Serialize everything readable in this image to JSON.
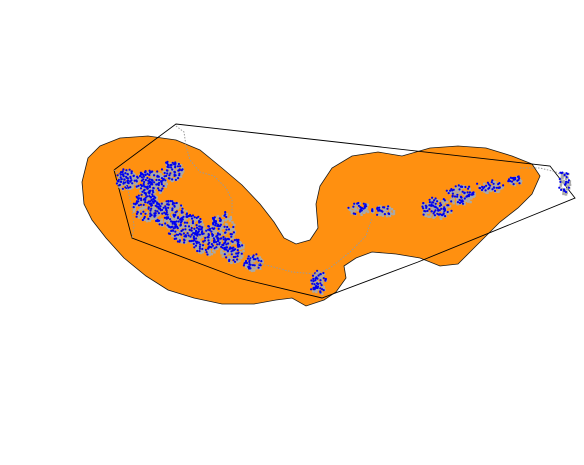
{
  "map": {
    "colors": {
      "buffer_fill": "#ff9010",
      "buffer_stroke": "#1a1a1a",
      "hull_stroke": "#000000",
      "occurrence_points": "#0000ee",
      "raster_cells": "#a9a9a9",
      "dotted_track": "#9a9a9a",
      "background": "#ffffff"
    },
    "layers": [
      {
        "id": "buffer-polygon",
        "kind": "polygon",
        "description_visible": false
      },
      {
        "id": "convex-hull",
        "kind": "outline"
      },
      {
        "id": "raster-cells",
        "kind": "gray-cells"
      },
      {
        "id": "occurrence-points",
        "kind": "blue-points"
      },
      {
        "id": "dotted-track",
        "kind": "dotted-line"
      }
    ]
  }
}
